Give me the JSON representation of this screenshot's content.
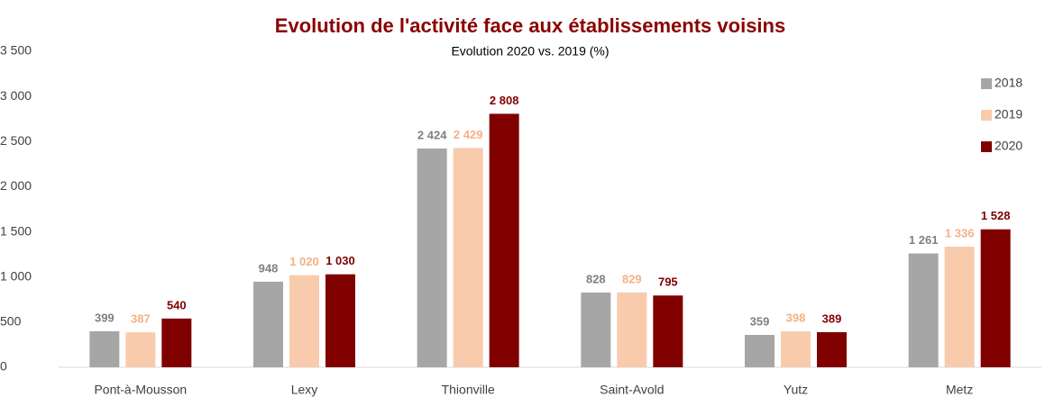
{
  "chart_data": {
    "type": "bar",
    "title": "Evolution de l'activité face aux établissements voisins",
    "subtitle": "Evolution 2020 vs. 2019 (%)",
    "categories": [
      "Pont-à-Mousson",
      "Lexy",
      "Thionville",
      "Saint-Avold",
      "Yutz",
      "Metz"
    ],
    "series": [
      {
        "name": "2018",
        "color": "#a6a6a6",
        "label_color": "#808080",
        "values": [
          399,
          948,
          2424,
          828,
          359,
          1261
        ],
        "value_labels": [
          "399",
          "948",
          "2 424",
          "828",
          "359",
          "1 261"
        ]
      },
      {
        "name": "2019",
        "color": "#f8cbad",
        "label_color": "#f4b183",
        "values": [
          387,
          1020,
          2429,
          829,
          398,
          1336
        ],
        "value_labels": [
          "387",
          "1 020",
          "2 429",
          "829",
          "398",
          "1 336"
        ]
      },
      {
        "name": "2020",
        "color": "#800000",
        "label_color": "#800000",
        "values": [
          540,
          1030,
          2808,
          795,
          389,
          1528
        ],
        "value_labels": [
          "540",
          "1 030",
          "2 808",
          "795",
          "389",
          "1 528"
        ]
      }
    ],
    "ylim": [
      0,
      3500
    ],
    "yticks": [
      0,
      500,
      {
        "value": 1000,
        "label": "1 000"
      },
      {
        "value": 1500,
        "label": "1 500"
      },
      {
        "value": 2000,
        "label": "2 000"
      },
      {
        "value": 2500,
        "label": "2 500"
      },
      {
        "value": 3000,
        "label": "3 000"
      },
      {
        "value": 3500,
        "label": "3 500"
      }
    ],
    "grid": false,
    "legend": "right"
  }
}
